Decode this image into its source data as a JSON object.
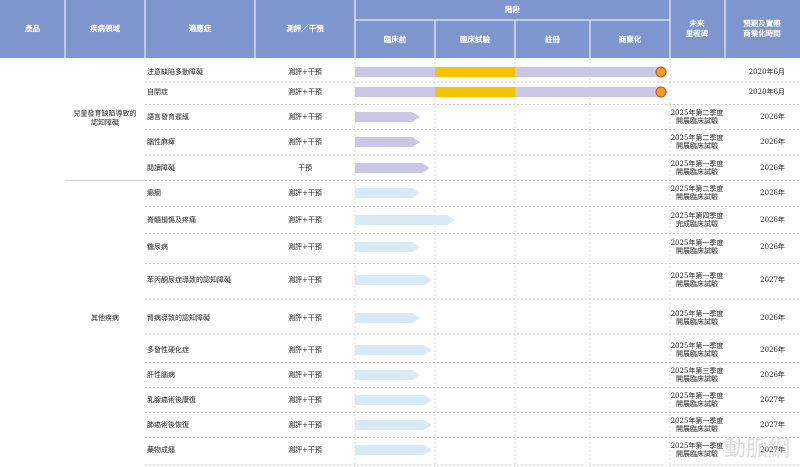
{
  "header": {
    "columns": [
      [
        "產品"
      ],
      [
        "疾病領域"
      ],
      [
        "適應症"
      ],
      [
        "測評／干預"
      ]
    ],
    "stage": "階段",
    "stages": [
      "臨床前",
      "臨床試驗",
      "註冊",
      "商業化"
    ],
    "milestone": [
      "未來",
      "里程碑"
    ],
    "time": [
      "預期及實際",
      "商業化時間"
    ]
  },
  "groups": [
    {
      "label": [
        "兒童發育缺陷導致的",
        "認知障礙"
      ],
      "rows": [
        {
          "indication": "注意缺陷多動障礙",
          "method": "測評+干預",
          "milestone": [],
          "time": "2020年6月"
        },
        {
          "indication": "自閉症",
          "method": "測評+干預",
          "milestone": [],
          "time": "2020年6月"
        },
        {
          "indication": "語言發育遲緩",
          "method": "測評+干預",
          "milestone": [
            "2025年第二季度",
            "開展臨床試驗"
          ],
          "time": "2026年"
        },
        {
          "indication": "腦性麻痺",
          "method": "測評+干預",
          "milestone": [
            "2025年第二季度",
            "開展臨床試驗"
          ],
          "time": "2026年"
        },
        {
          "indication": "閱讀障礙",
          "method": "干預",
          "milestone": [
            "2025年第一季度",
            "開展臨床試驗"
          ],
          "time": "2026年"
        }
      ]
    },
    {
      "label": [
        "其他疾病"
      ],
      "rows": [
        {
          "indication": "癲癇",
          "method": "測評+干預",
          "milestone": [
            "2025年第二季度",
            "開展臨床試驗"
          ],
          "time": "2026年"
        },
        {
          "indication": "脊髓損傷及疼痛",
          "method": "測評+干預",
          "milestone": [
            "2025年第四季度",
            "完成臨床試驗"
          ],
          "time": "2026年"
        },
        {
          "indication": "糖尿病",
          "method": "測評+干預",
          "milestone": [
            "2025年第一季度",
            "開展臨床試驗"
          ],
          "time": "2026年"
        },
        {
          "indication": "苯丙酮尿症導致的認知障礙",
          "method": "測評+干預",
          "milestone": [
            "2025年第一季度",
            "開展臨床試驗"
          ],
          "time": "2027年"
        },
        {
          "indication": "腎病導致的認知障礙",
          "method": "測評+干預",
          "milestone": [
            "2025年第一季度",
            "開展臨床試驗"
          ],
          "time": "2026年"
        },
        {
          "indication": "多發性硬化症",
          "method": "測評+干預",
          "milestone": [
            "2025年第一季度",
            "開展臨床試驗"
          ],
          "time": "2026年"
        },
        {
          "indication": "肝性腦病",
          "method": "測評+干預",
          "milestone": [
            "2025年第三季度",
            "開展臨床試驗"
          ],
          "time": "2026年"
        },
        {
          "indication": "乳腺癌術後康復",
          "method": "測評+干預",
          "milestone": [
            "2025年第一季度",
            "開展臨床試驗"
          ],
          "time": "2027年"
        },
        {
          "indication": "肺癌術後恢復",
          "method": "測評+干預",
          "milestone": [
            "2025年第一季度",
            "開展臨床試驗"
          ],
          "time": "2027年"
        },
        {
          "indication": "藥物成癮",
          "method": "測評+干預",
          "milestone": [
            "2025年第一季度",
            "開展臨床試驗"
          ],
          "time": "2027年"
        }
      ]
    }
  ],
  "watermark": "動脈網"
}
